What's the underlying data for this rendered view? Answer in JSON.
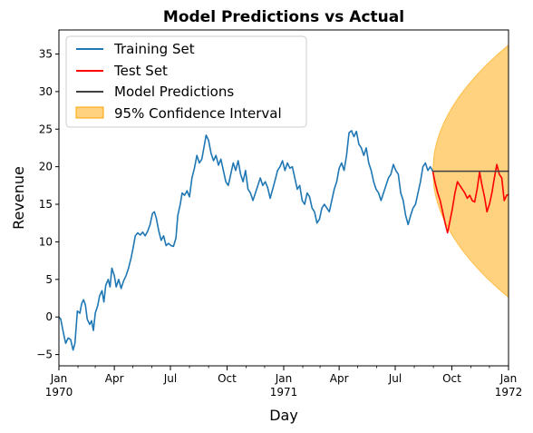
{
  "chart_data": {
    "type": "line",
    "title": "Model Predictions vs Actual",
    "xlabel": "Day",
    "ylabel": "Revenue",
    "xlim": [
      "1970-01-01",
      "1972-01-01"
    ],
    "ylim": [
      -6.5,
      38.2
    ],
    "grid": false,
    "legend_position": "top-left",
    "x_ticks": [
      {
        "date": "1970-01-01",
        "label": "Jan",
        "sublabel": "1970"
      },
      {
        "date": "1970-04-01",
        "label": "Apr",
        "sublabel": ""
      },
      {
        "date": "1970-07-01",
        "label": "Jul",
        "sublabel": ""
      },
      {
        "date": "1970-10-01",
        "label": "Oct",
        "sublabel": ""
      },
      {
        "date": "1971-01-01",
        "label": "Jan",
        "sublabel": "1971"
      },
      {
        "date": "1971-04-01",
        "label": "Apr",
        "sublabel": ""
      },
      {
        "date": "1971-07-01",
        "label": "Jul",
        "sublabel": ""
      },
      {
        "date": "1971-10-01",
        "label": "Oct",
        "sublabel": ""
      },
      {
        "date": "1972-01-01",
        "label": "Jan",
        "sublabel": "1972"
      }
    ],
    "y_ticks": [
      -5,
      0,
      5,
      10,
      15,
      20,
      25,
      30,
      35
    ],
    "series": [
      {
        "name": "Training Set",
        "color": "#1f77b4",
        "points": [
          [
            "1970-01-01",
            0.0
          ],
          [
            "1970-01-04",
            -0.3
          ],
          [
            "1970-01-08",
            -2.0
          ],
          [
            "1970-01-12",
            -3.5
          ],
          [
            "1970-01-16",
            -2.8
          ],
          [
            "1970-01-20",
            -3.0
          ],
          [
            "1970-01-24",
            -4.4
          ],
          [
            "1970-01-27",
            -3.5
          ],
          [
            "1970-01-31",
            0.8
          ],
          [
            "1970-02-04",
            0.5
          ],
          [
            "1970-02-07",
            1.8
          ],
          [
            "1970-02-10",
            2.3
          ],
          [
            "1970-02-13",
            1.6
          ],
          [
            "1970-02-16",
            -0.3
          ],
          [
            "1970-02-20",
            -1.0
          ],
          [
            "1970-02-23",
            -0.5
          ],
          [
            "1970-02-26",
            -1.8
          ],
          [
            "1970-03-01",
            0.5
          ],
          [
            "1970-03-05",
            1.5
          ],
          [
            "1970-03-08",
            2.8
          ],
          [
            "1970-03-12",
            3.5
          ],
          [
            "1970-03-15",
            2.0
          ],
          [
            "1970-03-18",
            4.2
          ],
          [
            "1970-03-22",
            5.0
          ],
          [
            "1970-03-25",
            4.0
          ],
          [
            "1970-03-28",
            6.5
          ],
          [
            "1970-04-01",
            5.5
          ],
          [
            "1970-04-04",
            4.0
          ],
          [
            "1970-04-08",
            5.0
          ],
          [
            "1970-04-12",
            3.8
          ],
          [
            "1970-04-16",
            4.8
          ],
          [
            "1970-04-20",
            5.5
          ],
          [
            "1970-04-24",
            6.5
          ],
          [
            "1970-04-28",
            7.8
          ],
          [
            "1970-05-01",
            9.0
          ],
          [
            "1970-05-05",
            10.8
          ],
          [
            "1970-05-09",
            11.2
          ],
          [
            "1970-05-13",
            10.9
          ],
          [
            "1970-05-17",
            11.3
          ],
          [
            "1970-05-21",
            10.8
          ],
          [
            "1970-05-25",
            11.4
          ],
          [
            "1970-05-29",
            12.3
          ],
          [
            "1970-06-02",
            13.8
          ],
          [
            "1970-06-05",
            14.0
          ],
          [
            "1970-06-08",
            13.2
          ],
          [
            "1970-06-12",
            11.5
          ],
          [
            "1970-06-16",
            10.2
          ],
          [
            "1970-06-20",
            10.8
          ],
          [
            "1970-06-24",
            9.5
          ],
          [
            "1970-06-28",
            9.8
          ],
          [
            "1970-07-02",
            9.5
          ],
          [
            "1970-07-06",
            9.4
          ],
          [
            "1970-07-10",
            10.5
          ],
          [
            "1970-07-13",
            13.5
          ],
          [
            "1970-07-17",
            15.0
          ],
          [
            "1970-07-20",
            16.5
          ],
          [
            "1970-07-24",
            16.2
          ],
          [
            "1970-07-28",
            16.8
          ],
          [
            "1970-08-01",
            16.0
          ],
          [
            "1970-08-05",
            18.5
          ],
          [
            "1970-08-09",
            19.8
          ],
          [
            "1970-08-13",
            21.5
          ],
          [
            "1970-08-17",
            20.5
          ],
          [
            "1970-08-21",
            21.0
          ],
          [
            "1970-08-25",
            22.8
          ],
          [
            "1970-08-28",
            24.2
          ],
          [
            "1970-09-01",
            23.5
          ],
          [
            "1970-09-05",
            21.8
          ],
          [
            "1970-09-09",
            20.8
          ],
          [
            "1970-09-13",
            21.5
          ],
          [
            "1970-09-17",
            20.2
          ],
          [
            "1970-09-21",
            21.0
          ],
          [
            "1970-09-25",
            19.5
          ],
          [
            "1970-09-29",
            18.0
          ],
          [
            "1970-10-03",
            17.5
          ],
          [
            "1970-10-07",
            19.0
          ],
          [
            "1970-10-11",
            20.5
          ],
          [
            "1970-10-15",
            19.5
          ],
          [
            "1970-10-19",
            20.8
          ],
          [
            "1970-10-23",
            19.0
          ],
          [
            "1970-10-27",
            18.0
          ],
          [
            "1970-10-31",
            19.5
          ],
          [
            "1970-11-04",
            17.0
          ],
          [
            "1970-11-08",
            16.5
          ],
          [
            "1970-11-12",
            15.5
          ],
          [
            "1970-11-16",
            16.5
          ],
          [
            "1970-11-20",
            17.5
          ],
          [
            "1970-11-24",
            18.5
          ],
          [
            "1970-11-28",
            17.5
          ],
          [
            "1970-12-02",
            18.0
          ],
          [
            "1970-12-06",
            17.2
          ],
          [
            "1970-12-10",
            15.8
          ],
          [
            "1970-12-14",
            17.0
          ],
          [
            "1970-12-18",
            18.2
          ],
          [
            "1970-12-22",
            19.5
          ],
          [
            "1970-12-26",
            20.0
          ],
          [
            "1970-12-30",
            20.8
          ],
          [
            "1971-01-03",
            19.5
          ],
          [
            "1971-01-07",
            20.5
          ],
          [
            "1971-01-11",
            19.8
          ],
          [
            "1971-01-15",
            20.0
          ],
          [
            "1971-01-19",
            18.5
          ],
          [
            "1971-01-23",
            17.0
          ],
          [
            "1971-01-27",
            17.5
          ],
          [
            "1971-01-31",
            15.5
          ],
          [
            "1971-02-04",
            15.0
          ],
          [
            "1971-02-08",
            16.5
          ],
          [
            "1971-02-12",
            16.0
          ],
          [
            "1971-02-16",
            14.5
          ],
          [
            "1971-02-20",
            14.0
          ],
          [
            "1971-02-24",
            12.5
          ],
          [
            "1971-02-28",
            13.0
          ],
          [
            "1971-03-04",
            14.5
          ],
          [
            "1971-03-08",
            15.0
          ],
          [
            "1971-03-12",
            14.5
          ],
          [
            "1971-03-16",
            14.0
          ],
          [
            "1971-03-20",
            15.5
          ],
          [
            "1971-03-24",
            17.0
          ],
          [
            "1971-03-28",
            18.0
          ],
          [
            "1971-04-01",
            19.8
          ],
          [
            "1971-04-05",
            20.5
          ],
          [
            "1971-04-09",
            19.5
          ],
          [
            "1971-04-13",
            21.5
          ],
          [
            "1971-04-17",
            24.5
          ],
          [
            "1971-04-21",
            24.8
          ],
          [
            "1971-04-25",
            24.0
          ],
          [
            "1971-04-29",
            24.7
          ],
          [
            "1971-05-03",
            23.0
          ],
          [
            "1971-05-07",
            22.5
          ],
          [
            "1971-05-11",
            21.5
          ],
          [
            "1971-05-15",
            22.5
          ],
          [
            "1971-05-19",
            20.5
          ],
          [
            "1971-05-23",
            19.5
          ],
          [
            "1971-05-27",
            18.0
          ],
          [
            "1971-05-31",
            17.0
          ],
          [
            "1971-06-04",
            16.5
          ],
          [
            "1971-06-08",
            15.5
          ],
          [
            "1971-06-12",
            16.5
          ],
          [
            "1971-06-16",
            17.5
          ],
          [
            "1971-06-20",
            18.5
          ],
          [
            "1971-06-24",
            19.0
          ],
          [
            "1971-06-28",
            20.3
          ],
          [
            "1971-07-02",
            19.5
          ],
          [
            "1971-07-06",
            19.0
          ],
          [
            "1971-07-10",
            16.5
          ],
          [
            "1971-07-14",
            15.5
          ],
          [
            "1971-07-18",
            13.5
          ],
          [
            "1971-07-22",
            12.3
          ],
          [
            "1971-07-26",
            13.5
          ],
          [
            "1971-07-30",
            14.5
          ],
          [
            "1971-08-03",
            15.0
          ],
          [
            "1971-08-07",
            16.5
          ],
          [
            "1971-08-11",
            18.0
          ],
          [
            "1971-08-15",
            20.0
          ],
          [
            "1971-08-19",
            20.5
          ],
          [
            "1971-08-23",
            19.5
          ],
          [
            "1971-08-27",
            20.0
          ],
          [
            "1971-08-31",
            19.4
          ]
        ]
      },
      {
        "name": "Test Set",
        "color": "#ff0000",
        "points": [
          [
            "1971-08-31",
            19.4
          ],
          [
            "1971-09-04",
            17.8
          ],
          [
            "1971-09-08",
            16.5
          ],
          [
            "1971-09-12",
            15.5
          ],
          [
            "1971-09-16",
            14.0
          ],
          [
            "1971-09-20",
            12.5
          ],
          [
            "1971-09-24",
            11.2
          ],
          [
            "1971-09-28",
            12.8
          ],
          [
            "1971-10-02",
            14.5
          ],
          [
            "1971-10-06",
            16.5
          ],
          [
            "1971-10-10",
            18.0
          ],
          [
            "1971-10-14",
            17.5
          ],
          [
            "1971-10-18",
            17.0
          ],
          [
            "1971-10-22",
            16.5
          ],
          [
            "1971-10-26",
            15.8
          ],
          [
            "1971-10-30",
            16.2
          ],
          [
            "1971-11-03",
            15.5
          ],
          [
            "1971-11-07",
            15.3
          ],
          [
            "1971-11-11",
            17.0
          ],
          [
            "1971-11-15",
            19.3
          ],
          [
            "1971-11-19",
            17.5
          ],
          [
            "1971-11-23",
            16.0
          ],
          [
            "1971-11-27",
            14.0
          ],
          [
            "1971-12-01",
            15.0
          ],
          [
            "1971-12-05",
            16.5
          ],
          [
            "1971-12-09",
            18.5
          ],
          [
            "1971-12-13",
            20.3
          ],
          [
            "1971-12-17",
            19.0
          ],
          [
            "1971-12-21",
            18.5
          ],
          [
            "1971-12-25",
            15.5
          ],
          [
            "1971-12-29",
            16.2
          ],
          [
            "1972-01-01",
            16.3
          ]
        ]
      },
      {
        "name": "Model Predictions",
        "color": "#404040",
        "points": [
          [
            "1971-08-31",
            19.4
          ],
          [
            "1972-01-01",
            19.4
          ]
        ]
      }
    ],
    "confidence_band": {
      "name": "95% Confidence Interval",
      "color": "#ffa500",
      "opacity": 0.5,
      "x_start": "1971-08-31",
      "x_end": "1972-01-01",
      "center": 19.4,
      "half_width_at_end": 16.8
    }
  }
}
